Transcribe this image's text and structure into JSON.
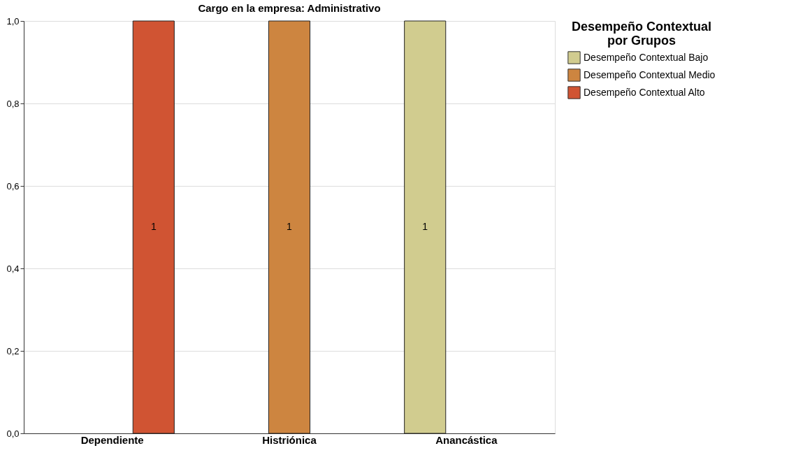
{
  "chart_data": {
    "type": "bar",
    "title": "Cargo en la empresa: Administrativo",
    "categories": [
      "Dependiente",
      "Histriónica",
      "Anancástica"
    ],
    "series": [
      {
        "name": "Desempeño Contextual Bajo",
        "color": "#d1cc8f",
        "values": [
          null,
          null,
          1
        ],
        "value_labels": [
          null,
          null,
          "1"
        ]
      },
      {
        "name": "Desempeño Contextual Medio",
        "color": "#cd8540",
        "values": [
          null,
          1,
          null
        ],
        "value_labels": [
          null,
          "1",
          null
        ]
      },
      {
        "name": "Desempeño Contextual Alto",
        "color": "#d05433",
        "values": [
          1,
          null,
          null
        ],
        "value_labels": [
          "1",
          null,
          null
        ]
      }
    ],
    "legend_title": "Desempeño Contextual por Grupos",
    "ylim": [
      0,
      1
    ],
    "yticks": [
      {
        "value": 0,
        "label": "0,0"
      },
      {
        "value": 0.2,
        "label": "0,2"
      },
      {
        "value": 0.4,
        "label": "0,4"
      },
      {
        "value": 0.6,
        "label": "0,6"
      },
      {
        "value": 0.8,
        "label": "0,8"
      },
      {
        "value": 1,
        "label": "1,0"
      }
    ],
    "grid": "y",
    "legend": "top right"
  }
}
